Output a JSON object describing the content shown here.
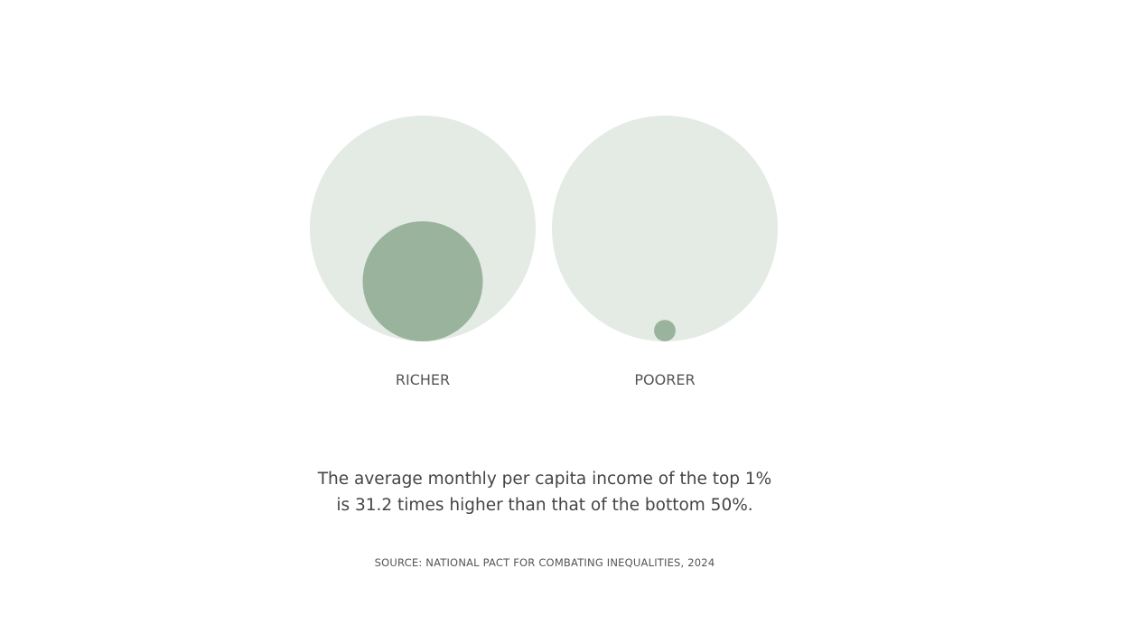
{
  "chart_data": {
    "type": "bubble",
    "colors": {
      "outer": "#e3ebe4",
      "inner": "#9ab39c"
    },
    "groups": [
      {
        "label": "RICHER",
        "relative_value": 31.2
      },
      {
        "label": "POORER",
        "relative_value": 1
      }
    ],
    "ratio": 31.2
  },
  "caption": {
    "line1": "The average monthly per capita income of the top 1%",
    "line2": "is 31.2 times higher than that of the bottom 50%."
  },
  "source": "SOURCE: NATIONAL PACT FOR COMBATING INEQUALITIES, 2024"
}
